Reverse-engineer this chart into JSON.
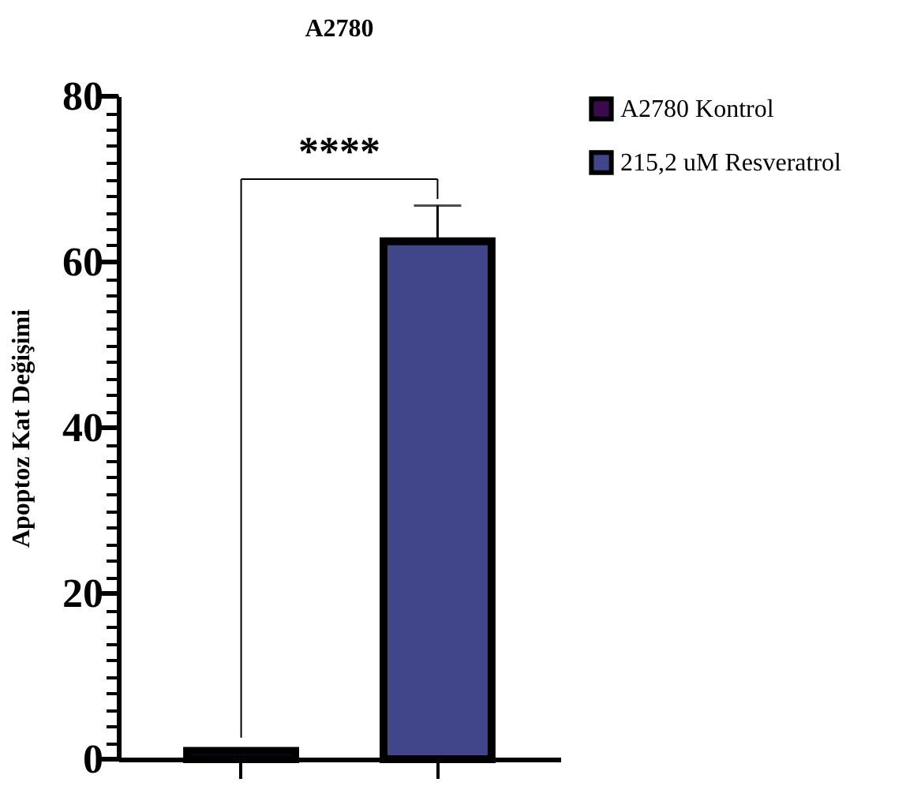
{
  "chart_data": {
    "type": "bar",
    "title": "A2780",
    "ylabel": "Apoptoz Kat Değişimi",
    "categories": [
      null,
      null
    ],
    "series": [
      {
        "name": "A2780 Kontrol",
        "color": "#3a0a4a",
        "values": [
          1,
          null
        ],
        "errors": [
          null,
          null
        ]
      },
      {
        "name": "215,2 uM Resveratrol",
        "color": "#41458a",
        "values": [
          null,
          62.5
        ],
        "errors": [
          null,
          4.3
        ]
      }
    ],
    "ylim": [
      0,
      80
    ],
    "yticks": [
      0,
      {
        "value": 2,
        "label": null
      },
      {
        "value": 4,
        "label": null
      },
      {
        "value": 6,
        "label": null
      },
      {
        "value": 8,
        "label": null
      },
      {
        "value": 10,
        "label": null
      },
      {
        "value": 12,
        "label": null
      },
      {
        "value": 14,
        "label": null
      },
      {
        "value": 16,
        "label": null
      },
      {
        "value": 18,
        "label": null
      },
      20,
      {
        "value": 22,
        "label": null
      },
      {
        "value": 24,
        "label": null
      },
      {
        "value": 26,
        "label": null
      },
      {
        "value": 28,
        "label": null
      },
      {
        "value": 30,
        "label": null
      },
      {
        "value": 32,
        "label": null
      },
      {
        "value": 34,
        "label": null
      },
      {
        "value": 36,
        "label": null
      },
      {
        "value": 38,
        "label": null
      },
      40,
      {
        "value": 42,
        "label": null
      },
      {
        "value": 44,
        "label": null
      },
      {
        "value": 46,
        "label": null
      },
      {
        "value": 48,
        "label": null
      },
      {
        "value": 50,
        "label": null
      },
      {
        "value": 52,
        "label": null
      },
      {
        "value": 54,
        "label": null
      },
      {
        "value": 56,
        "label": null
      },
      {
        "value": 58,
        "label": null
      },
      60,
      {
        "value": 62,
        "label": null
      },
      {
        "value": 64,
        "label": null
      },
      {
        "value": 66,
        "label": null
      },
      {
        "value": 68,
        "label": null
      },
      {
        "value": 70,
        "label": null
      },
      {
        "value": 72,
        "label": null
      },
      {
        "value": 74,
        "label": null
      },
      {
        "value": 76,
        "label": null
      },
      {
        "value": 78,
        "label": null
      },
      80
    ],
    "annotations": [
      "****"
    ],
    "grid": false,
    "legend": "top right",
    "tick_labels": "y"
  }
}
